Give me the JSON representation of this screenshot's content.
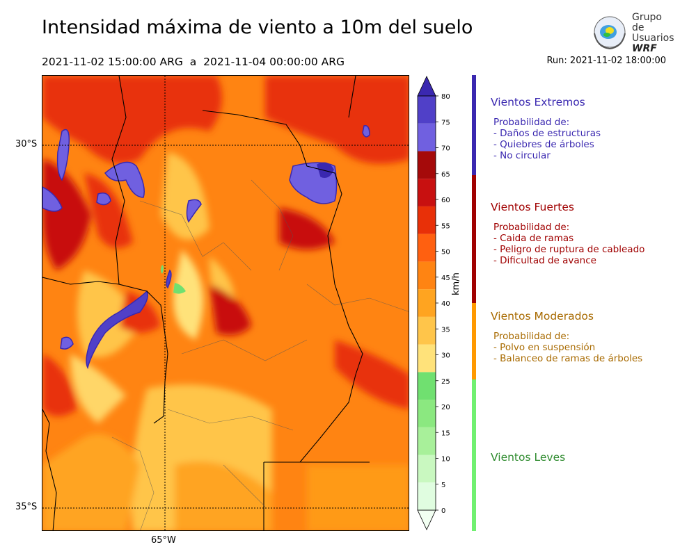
{
  "header": {
    "title": "Intensidad máxima de viento a 10m del suelo",
    "period": "2021-11-02 15:00:00 ARG  a  2021-11-04 00:00:00 ARG",
    "run": "Run: 2021-11-02 18:00:00",
    "logo_line1": "Grupo de",
    "logo_line2": "Usuarios",
    "logo_line3": "WRF"
  },
  "map": {
    "lat_labels": [
      "30°S",
      "35°S"
    ],
    "lon_labels": [
      "65°W"
    ]
  },
  "colorbar": {
    "unit": "km/h",
    "ticks": [
      "0",
      "5",
      "10",
      "15",
      "20",
      "25",
      "30",
      "35",
      "40",
      "45",
      "50",
      "55",
      "60",
      "65",
      "70",
      "75",
      "80"
    ],
    "colors": [
      "#f2fff2",
      "#e0fde0",
      "#c9f8c0",
      "#a8f09a",
      "#8be880",
      "#70e070",
      "#ffe27a",
      "#ffc54a",
      "#ffa420",
      "#ff8412",
      "#ff6010",
      "#e83008",
      "#c81010",
      "#a50a0a",
      "#7060e0",
      "#5040c8",
      "#3a28b0"
    ]
  },
  "legend": [
    {
      "title": "Vientos Extremos",
      "color": "#3a28b0",
      "text_color": "#3a28b0",
      "desc": [
        "Probabilidad de:",
        "- Daños de estructuras",
        "- Quiebres de árboles",
        "- No circular"
      ]
    },
    {
      "title": "Vientos Fuertes",
      "color": "#a00000",
      "text_color": "#a00000",
      "desc": [
        "Probabilidad de:",
        "- Caida de ramas",
        "- Peligro de ruptura de cableado",
        "- Dificultad de avance"
      ]
    },
    {
      "title": "Vientos Moderados",
      "color": "#ff9900",
      "text_color": "#a86a00",
      "desc": [
        "Probabilidad de:",
        "- Polvo en suspensión",
        "- Balanceo de ramas de árboles"
      ]
    },
    {
      "title": "Vientos Leves",
      "color": "#70f070",
      "text_color": "#2e8b2e",
      "desc": []
    }
  ]
}
